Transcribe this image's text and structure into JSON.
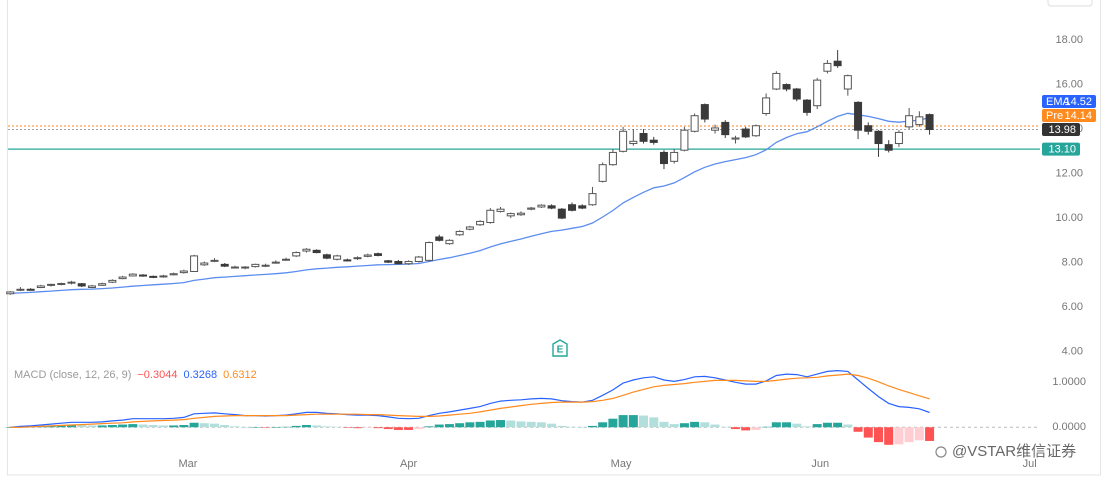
{
  "chart_data": [
    {
      "type": "candlestick",
      "xlim": [
        -1,
        106
      ],
      "xticks": [
        {
          "value": 17.4,
          "label": "Mar"
        },
        {
          "value": 39,
          "label": "Apr"
        },
        {
          "value": 59.8,
          "label": "May"
        },
        {
          "value": 79.3,
          "label": "Jun"
        },
        {
          "value": 99.8,
          "label": "Jul"
        }
      ],
      "ylim": [
        3.6,
        19.8
      ],
      "yticks": [
        {
          "value": 4,
          "label": "4.00"
        },
        {
          "value": 6,
          "label": "6.00"
        },
        {
          "value": 8,
          "label": "8.00"
        },
        {
          "value": 10,
          "label": "10.00"
        },
        {
          "value": 12,
          "label": "12.00"
        },
        {
          "value": 14,
          "label": "14.00"
        },
        {
          "value": 16,
          "label": "16.00"
        },
        {
          "value": 18,
          "label": "18.00"
        }
      ],
      "up_color": "#ffffff",
      "down_color": "#3a3a3a",
      "edge_color": "#555555",
      "open": [
        6.6,
        6.78,
        6.8,
        6.88,
        6.98,
        7.02,
        7.08,
        7.05,
        6.88,
        6.98,
        7.12,
        7.28,
        7.4,
        7.44,
        7.38,
        7.36,
        7.45,
        7.55,
        7.6,
        7.9,
        8.08,
        7.92,
        7.8,
        7.76,
        7.82,
        7.85,
        7.98,
        8.12,
        8.3,
        8.52,
        8.55,
        8.35,
        8.15,
        8.12,
        8.18,
        8.28,
        8.4,
        8.08,
        8.05,
        7.95,
        8.05,
        8.1,
        9.15,
        8.85,
        9.25,
        9.5,
        9.7,
        9.8,
        10.3,
        10.1,
        10.15,
        10.4,
        10.5,
        10.55,
        10.4,
        10.6,
        10.55,
        10.6,
        11.65,
        12.4,
        13.0,
        13.35,
        13.8,
        13.5,
        12.95,
        12.55,
        13.05,
        13.9,
        15.1,
        13.95,
        14.3,
        13.55,
        14.0,
        13.7,
        14.7,
        15.8,
        16.0,
        15.8,
        15.3,
        15.05,
        16.6,
        17.05,
        15.8,
        15.2,
        14.15,
        13.9,
        13.3,
        13.35,
        14.1,
        14.2,
        14.65
      ],
      "high": [
        6.72,
        6.9,
        6.85,
        7.0,
        7.05,
        7.1,
        7.18,
        7.08,
        7.0,
        7.1,
        7.25,
        7.4,
        7.52,
        7.48,
        7.42,
        7.45,
        7.55,
        7.68,
        8.35,
        8.05,
        8.2,
        7.98,
        7.86,
        7.84,
        7.95,
        7.95,
        8.1,
        8.22,
        8.5,
        8.65,
        8.6,
        8.4,
        8.35,
        8.18,
        8.28,
        8.4,
        8.45,
        8.12,
        8.12,
        8.1,
        8.3,
        8.95,
        9.25,
        9.05,
        9.45,
        9.65,
        9.9,
        10.45,
        10.5,
        10.25,
        10.3,
        10.5,
        10.62,
        10.62,
        10.45,
        10.7,
        10.62,
        11.4,
        12.5,
        13.1,
        14.1,
        14.0,
        14.0,
        13.65,
        13.05,
        13.1,
        14.1,
        14.7,
        15.15,
        14.2,
        14.4,
        13.7,
        14.1,
        14.2,
        15.6,
        16.6,
        16.05,
        15.85,
        15.35,
        16.3,
        17.1,
        17.55,
        16.45,
        15.25,
        14.3,
        13.95,
        13.5,
        13.95,
        14.95,
        14.8,
        14.7
      ],
      "low": [
        6.55,
        6.72,
        6.74,
        6.85,
        6.92,
        6.98,
        7.02,
        6.9,
        6.85,
        6.95,
        7.08,
        7.25,
        7.38,
        7.36,
        7.3,
        7.32,
        7.42,
        7.5,
        7.58,
        7.85,
        8.02,
        7.8,
        7.74,
        7.7,
        7.78,
        7.8,
        7.95,
        8.08,
        8.25,
        8.45,
        8.42,
        8.15,
        8.1,
        8.05,
        8.12,
        8.24,
        8.28,
        7.98,
        7.92,
        7.9,
        8.0,
        8.05,
        8.95,
        8.8,
        9.2,
        9.45,
        9.65,
        9.75,
        10.25,
        10.0,
        10.1,
        10.35,
        10.45,
        10.4,
        9.95,
        10.3,
        10.4,
        10.55,
        11.6,
        12.35,
        12.95,
        13.25,
        13.35,
        13.3,
        12.2,
        12.45,
        13.0,
        13.85,
        14.3,
        13.8,
        13.6,
        13.35,
        13.6,
        13.65,
        14.6,
        15.75,
        15.7,
        15.25,
        14.6,
        14.9,
        16.5,
        16.75,
        15.5,
        13.55,
        13.75,
        12.75,
        12.95,
        13.2,
        14.0,
        14.1,
        13.75
      ],
      "close": [
        6.68,
        6.8,
        6.78,
        6.95,
        7.02,
        7.06,
        7.12,
        6.95,
        6.95,
        7.05,
        7.2,
        7.35,
        7.48,
        7.4,
        7.35,
        7.4,
        7.5,
        7.62,
        8.3,
        7.98,
        8.1,
        7.84,
        7.8,
        7.8,
        7.92,
        7.88,
        8.02,
        8.15,
        8.45,
        8.6,
        8.45,
        8.2,
        8.3,
        8.1,
        8.22,
        8.34,
        8.32,
        8.02,
        7.95,
        8.05,
        8.25,
        8.9,
        9.0,
        9.0,
        9.4,
        9.6,
        9.85,
        10.35,
        10.4,
        10.2,
        10.22,
        10.45,
        10.58,
        10.45,
        10.0,
        10.35,
        10.45,
        11.1,
        12.4,
        12.95,
        13.9,
        13.45,
        13.45,
        13.4,
        12.45,
        12.95,
        13.95,
        14.6,
        14.45,
        14.05,
        13.75,
        13.6,
        13.65,
        14.15,
        15.4,
        16.5,
        15.8,
        15.35,
        14.75,
        16.2,
        16.95,
        16.85,
        16.4,
        13.95,
        13.9,
        13.35,
        13.05,
        13.85,
        14.6,
        14.55,
        13.98
      ],
      "last_price_color": "#333333",
      "ema": {
        "name": "EMA",
        "color": "#2962ff",
        "line_color": "#5b8def",
        "values": [
          6.62,
          6.64,
          6.66,
          6.69,
          6.72,
          6.75,
          6.78,
          6.8,
          6.81,
          6.83,
          6.86,
          6.9,
          6.94,
          6.97,
          7.0,
          7.03,
          7.06,
          7.1,
          7.2,
          7.26,
          7.32,
          7.35,
          7.38,
          7.41,
          7.44,
          7.47,
          7.5,
          7.54,
          7.6,
          7.67,
          7.72,
          7.75,
          7.79,
          7.81,
          7.84,
          7.87,
          7.9,
          7.91,
          7.92,
          7.93,
          7.96,
          8.05,
          8.14,
          8.22,
          8.32,
          8.42,
          8.54,
          8.7,
          8.84,
          8.95,
          9.06,
          9.18,
          9.3,
          9.4,
          9.46,
          9.54,
          9.62,
          9.78,
          10.05,
          10.34,
          10.68,
          10.93,
          11.16,
          11.36,
          11.44,
          11.58,
          11.82,
          12.08,
          12.28,
          12.43,
          12.54,
          12.63,
          12.72,
          12.85,
          13.07,
          13.4,
          13.62,
          13.79,
          13.88,
          14.1,
          14.35,
          14.57,
          14.71,
          14.64,
          14.57,
          14.47,
          14.35,
          14.31,
          14.36,
          14.4,
          14.52
        ]
      },
      "price_lines": [
        {
          "name": "Pre",
          "value": 14.14,
          "color": "#ff8a1e",
          "style": "dotted"
        },
        {
          "value": 13.1,
          "label": "13.10",
          "color": "#26a69a",
          "style": "solid"
        }
      ],
      "event_label": "E"
    },
    {
      "type": "macd",
      "title": "MACD (close, 12, 26, 9)",
      "xlim": [
        -1,
        106
      ],
      "ylim": [
        -0.95,
        1.45
      ],
      "yticks": [
        {
          "value": 1,
          "label": "1.0000"
        },
        {
          "value": 0,
          "label": "0.0000"
        }
      ],
      "histogram": {
        "colors": [
          "#26a69a",
          "#b2dfdb",
          "#ff5252",
          "#ffcdd2"
        ],
        "legend_color": "#ff5252",
        "legend_label": "−0.3044",
        "values": [
          0.0,
          0.02,
          0.02,
          0.03,
          0.04,
          0.05,
          0.06,
          0.05,
          0.04,
          0.04,
          0.05,
          0.06,
          0.07,
          0.06,
          0.05,
          0.04,
          0.04,
          0.05,
          0.1,
          0.09,
          0.08,
          0.05,
          0.02,
          0.0,
          0.0,
          -0.01,
          0.0,
          0.01,
          0.03,
          0.05,
          0.04,
          0.02,
          0.01,
          -0.01,
          -0.02,
          -0.01,
          -0.02,
          -0.04,
          -0.06,
          -0.06,
          -0.04,
          0.02,
          0.06,
          0.07,
          0.09,
          0.11,
          0.12,
          0.15,
          0.16,
          0.15,
          0.13,
          0.12,
          0.11,
          0.08,
          0.03,
          0.01,
          0.0,
          0.03,
          0.11,
          0.19,
          0.27,
          0.27,
          0.26,
          0.22,
          0.12,
          0.07,
          0.09,
          0.12,
          0.11,
          0.06,
          0.01,
          -0.04,
          -0.07,
          -0.06,
          0.01,
          0.11,
          0.11,
          0.08,
          0.02,
          0.07,
          0.1,
          0.1,
          0.06,
          -0.1,
          -0.23,
          -0.33,
          -0.39,
          -0.38,
          -0.33,
          -0.29,
          -0.3044
        ]
      },
      "series": [
        {
          "color": "#2962ff",
          "values": [
            0.0,
            0.02,
            0.03,
            0.05,
            0.07,
            0.09,
            0.11,
            0.11,
            0.11,
            0.12,
            0.14,
            0.16,
            0.19,
            0.19,
            0.19,
            0.19,
            0.2,
            0.22,
            0.3,
            0.31,
            0.32,
            0.3,
            0.28,
            0.26,
            0.26,
            0.25,
            0.26,
            0.27,
            0.3,
            0.33,
            0.33,
            0.31,
            0.3,
            0.28,
            0.27,
            0.27,
            0.26,
            0.23,
            0.2,
            0.19,
            0.2,
            0.26,
            0.31,
            0.34,
            0.38,
            0.42,
            0.46,
            0.53,
            0.58,
            0.6,
            0.61,
            0.63,
            0.64,
            0.63,
            0.59,
            0.57,
            0.56,
            0.6,
            0.71,
            0.83,
            0.98,
            1.05,
            1.1,
            1.12,
            1.05,
            1.02,
            1.06,
            1.12,
            1.13,
            1.1,
            1.05,
            1.0,
            0.96,
            0.96,
            1.03,
            1.15,
            1.18,
            1.17,
            1.12,
            1.18,
            1.24,
            1.26,
            1.24,
            1.05,
            0.86,
            0.68,
            0.53,
            0.46,
            0.44,
            0.41,
            0.3268
          ]
        },
        {
          "color": "#ff8a1e",
          "values": [
            0.0,
            0.0,
            0.01,
            0.02,
            0.03,
            0.04,
            0.05,
            0.06,
            0.07,
            0.08,
            0.09,
            0.1,
            0.12,
            0.13,
            0.14,
            0.15,
            0.16,
            0.17,
            0.2,
            0.22,
            0.24,
            0.25,
            0.26,
            0.26,
            0.26,
            0.26,
            0.26,
            0.26,
            0.27,
            0.28,
            0.29,
            0.29,
            0.29,
            0.29,
            0.29,
            0.28,
            0.28,
            0.27,
            0.26,
            0.25,
            0.24,
            0.24,
            0.25,
            0.27,
            0.29,
            0.31,
            0.34,
            0.38,
            0.42,
            0.45,
            0.48,
            0.51,
            0.53,
            0.55,
            0.56,
            0.56,
            0.56,
            0.57,
            0.6,
            0.64,
            0.71,
            0.78,
            0.84,
            0.9,
            0.93,
            0.95,
            0.97,
            1.0,
            1.02,
            1.04,
            1.04,
            1.04,
            1.03,
            1.02,
            1.02,
            1.04,
            1.07,
            1.09,
            1.1,
            1.11,
            1.14,
            1.16,
            1.18,
            1.15,
            1.09,
            1.01,
            0.92,
            0.84,
            0.77,
            0.7,
            0.6312
          ]
        }
      ]
    }
  ],
  "watermark": "@VSTAR维信证券"
}
